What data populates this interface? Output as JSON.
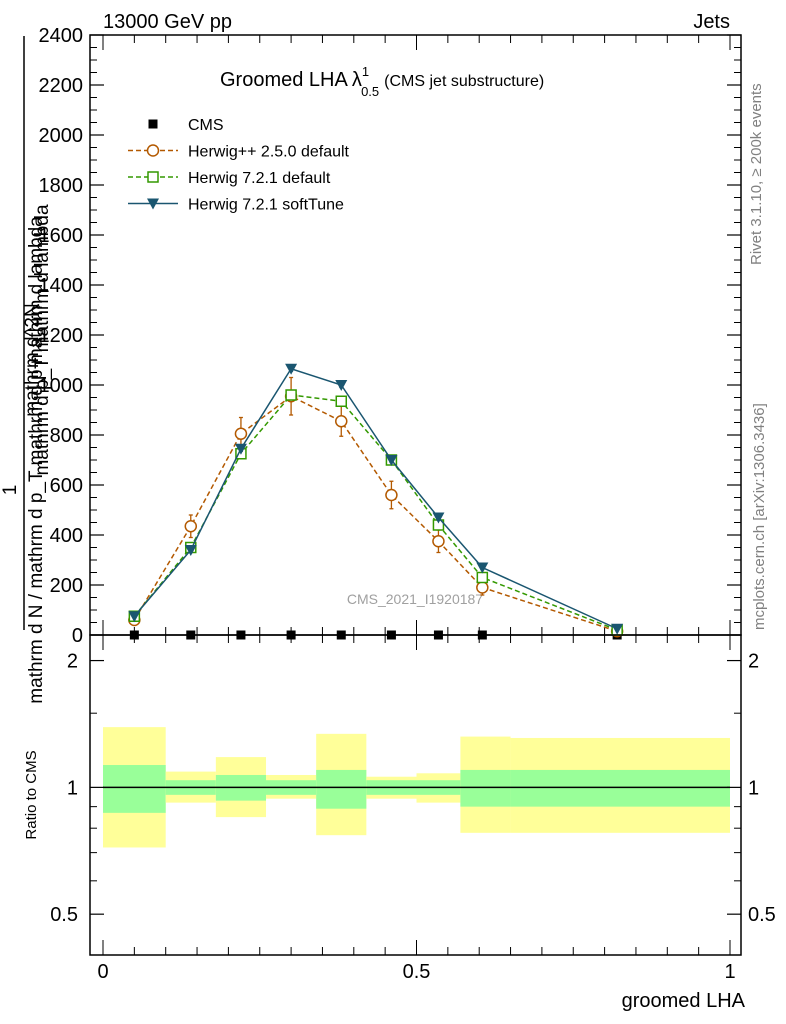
{
  "header": {
    "left": "13000 GeV pp",
    "right": "Jets",
    "title_main": "Groomed LHA",
    "title_lambda": "λ",
    "title_sup": "1",
    "title_sub": "0.5",
    "title_paren": "(CMS jet substructure)",
    "side_rivet": "Rivet 3.1.10, ≥ 200k events",
    "side_mcplots": "mcplots.cern.ch [arXiv:1306.3436]",
    "watermark": "CMS_2021_I1920187"
  },
  "colors": {
    "cms": "#000000",
    "herwigpp": "#b35900",
    "herwig721": "#339900",
    "softtune": "#1a5670",
    "band_inner": "#99ff99",
    "band_outer": "#ffff99"
  },
  "chart_data": [
    {
      "type": "line",
      "ylabel_num": "1",
      "ylabel_den": "mathrm d N / mathrm d p_T mathrm d p mathrm d lambda",
      "ylabel_top": "mathrm d^2N",
      "ylabel_top2": "mathrm d p_T mathrm d lambda",
      "xlim": [
        0,
        1
      ],
      "ylim": [
        0,
        2400
      ],
      "yticks": [
        0,
        200,
        400,
        600,
        800,
        1000,
        1200,
        1400,
        1600,
        1800,
        2000,
        2200,
        2400
      ],
      "ytick_labels": [
        "0",
        "200",
        "400",
        "600",
        "800",
        "1000",
        "1200",
        "1400",
        "1600",
        "1800",
        "2000",
        "2200",
        "2400"
      ],
      "legend_position": "top-left",
      "bins": [
        [
          0,
          0.1
        ],
        [
          0.1,
          0.18
        ],
        [
          0.18,
          0.26
        ],
        [
          0.26,
          0.34
        ],
        [
          0.34,
          0.42
        ],
        [
          0.42,
          0.5
        ],
        [
          0.5,
          0.57
        ],
        [
          0.57,
          0.65
        ],
        [
          0.65,
          1.0
        ]
      ],
      "series": [
        {
          "name": "CMS",
          "marker": "square",
          "x": [
            0.05,
            0.14,
            0.22,
            0.3,
            0.38,
            0.46,
            0.535,
            0.605,
            0.82
          ],
          "y": [
            0,
            0,
            0,
            0,
            0,
            0,
            0,
            0,
            0
          ]
        },
        {
          "name": "Herwig++ 2.5.0 default",
          "marker": "circle",
          "dashed": true,
          "x": [
            0.05,
            0.14,
            0.22,
            0.3,
            0.38,
            0.46,
            0.535,
            0.605,
            0.82
          ],
          "y": [
            60,
            435,
            805,
            955,
            855,
            560,
            375,
            190,
            15
          ],
          "err": [
            15,
            45,
            65,
            75,
            60,
            55,
            45,
            30,
            5
          ]
        },
        {
          "name": "Herwig 7.2.1 default",
          "marker": "square-open",
          "dashed": true,
          "x": [
            0.05,
            0.14,
            0.22,
            0.3,
            0.38,
            0.46,
            0.535,
            0.605,
            0.82
          ],
          "y": [
            75,
            350,
            725,
            960,
            935,
            700,
            440,
            230,
            20
          ],
          "err": [
            5,
            10,
            10,
            10,
            10,
            10,
            10,
            8,
            3
          ]
        },
        {
          "name": "Herwig 7.2.1 softTune",
          "marker": "triangle-down",
          "dashed": false,
          "x": [
            0.05,
            0.14,
            0.22,
            0.3,
            0.38,
            0.46,
            0.535,
            0.605,
            0.82
          ],
          "y": [
            75,
            340,
            745,
            1065,
            1000,
            700,
            470,
            270,
            25
          ],
          "err": [
            5,
            10,
            10,
            10,
            10,
            10,
            10,
            8,
            3
          ]
        }
      ]
    },
    {
      "type": "area",
      "ylabel": "Ratio to CMS",
      "xlabel": "groomed LHA",
      "xlim": [
        0,
        1
      ],
      "ylim": [
        0.4,
        2.3
      ],
      "log_scale": true,
      "yticks": [
        0.5,
        1,
        2
      ],
      "ytick_labels": [
        "0.5",
        "1",
        "2"
      ],
      "xticks": [
        0,
        0.5,
        1
      ],
      "xtick_labels": [
        "0",
        "0.5",
        "1"
      ],
      "bins": [
        [
          0,
          0.1
        ],
        [
          0.1,
          0.18
        ],
        [
          0.18,
          0.26
        ],
        [
          0.26,
          0.34
        ],
        [
          0.34,
          0.42
        ],
        [
          0.42,
          0.5
        ],
        [
          0.5,
          0.57
        ],
        [
          0.57,
          0.65
        ],
        [
          0.65,
          1.0
        ]
      ],
      "band_inner": [
        [
          0.87,
          1.13
        ],
        [
          0.96,
          1.04
        ],
        [
          0.93,
          1.07
        ],
        [
          0.96,
          1.04
        ],
        [
          0.89,
          1.1
        ],
        [
          0.96,
          1.04
        ],
        [
          0.96,
          1.04
        ],
        [
          0.9,
          1.1
        ],
        [
          0.9,
          1.1
        ]
      ],
      "band_outer": [
        [
          0.72,
          1.39
        ],
        [
          0.92,
          1.09
        ],
        [
          0.85,
          1.18
        ],
        [
          0.94,
          1.07
        ],
        [
          0.77,
          1.34
        ],
        [
          0.94,
          1.06
        ],
        [
          0.92,
          1.08
        ],
        [
          0.78,
          1.32
        ],
        [
          0.78,
          1.31
        ]
      ]
    }
  ]
}
